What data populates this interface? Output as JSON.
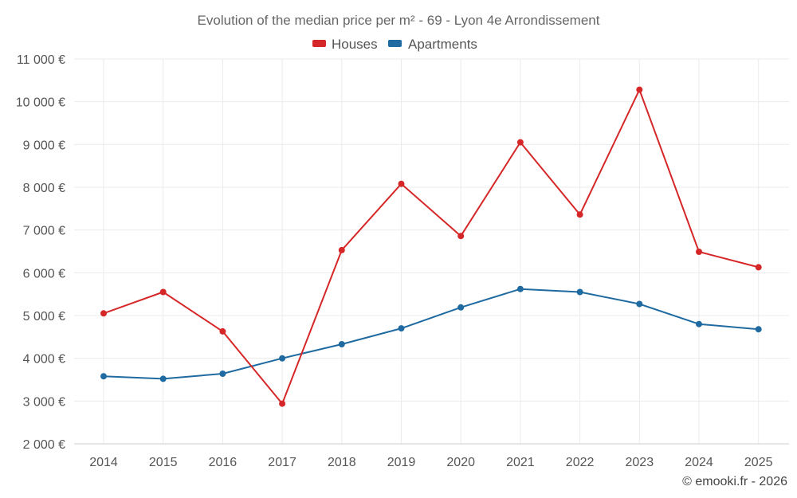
{
  "chart_data": {
    "type": "line",
    "title": "Evolution of the median price per m² - 69 - Lyon 4e Arrondissement",
    "categories": [
      "2014",
      "2015",
      "2016",
      "2017",
      "2018",
      "2019",
      "2020",
      "2021",
      "2022",
      "2023",
      "2024",
      "2025"
    ],
    "series": [
      {
        "name": "Houses",
        "color": "#d62728",
        "values": [
          5050,
          5550,
          4630,
          2940,
          6530,
          8080,
          6860,
          9050,
          7360,
          10280,
          6490,
          6130
        ]
      },
      {
        "name": "Apartments",
        "color": "#1f6aa0",
        "values": [
          3580,
          3520,
          3640,
          4000,
          4330,
          4700,
          5190,
          5620,
          5550,
          5270,
          4800,
          4680
        ]
      }
    ],
    "ylim": [
      2000,
      11000
    ],
    "yticks": [
      2000,
      3000,
      4000,
      5000,
      6000,
      7000,
      8000,
      9000,
      10000,
      11000
    ],
    "ytick_labels": [
      "2 000 €",
      "3 000 €",
      "4 000 €",
      "5 000 €",
      "6 000 €",
      "7 000 €",
      "8 000 €",
      "9 000 €",
      "10 000 €",
      "11 000 €"
    ],
    "xlabel": "",
    "ylabel": "",
    "grid": true,
    "legend_position": "top-center"
  },
  "credit": "© emooki.fr - 2026"
}
